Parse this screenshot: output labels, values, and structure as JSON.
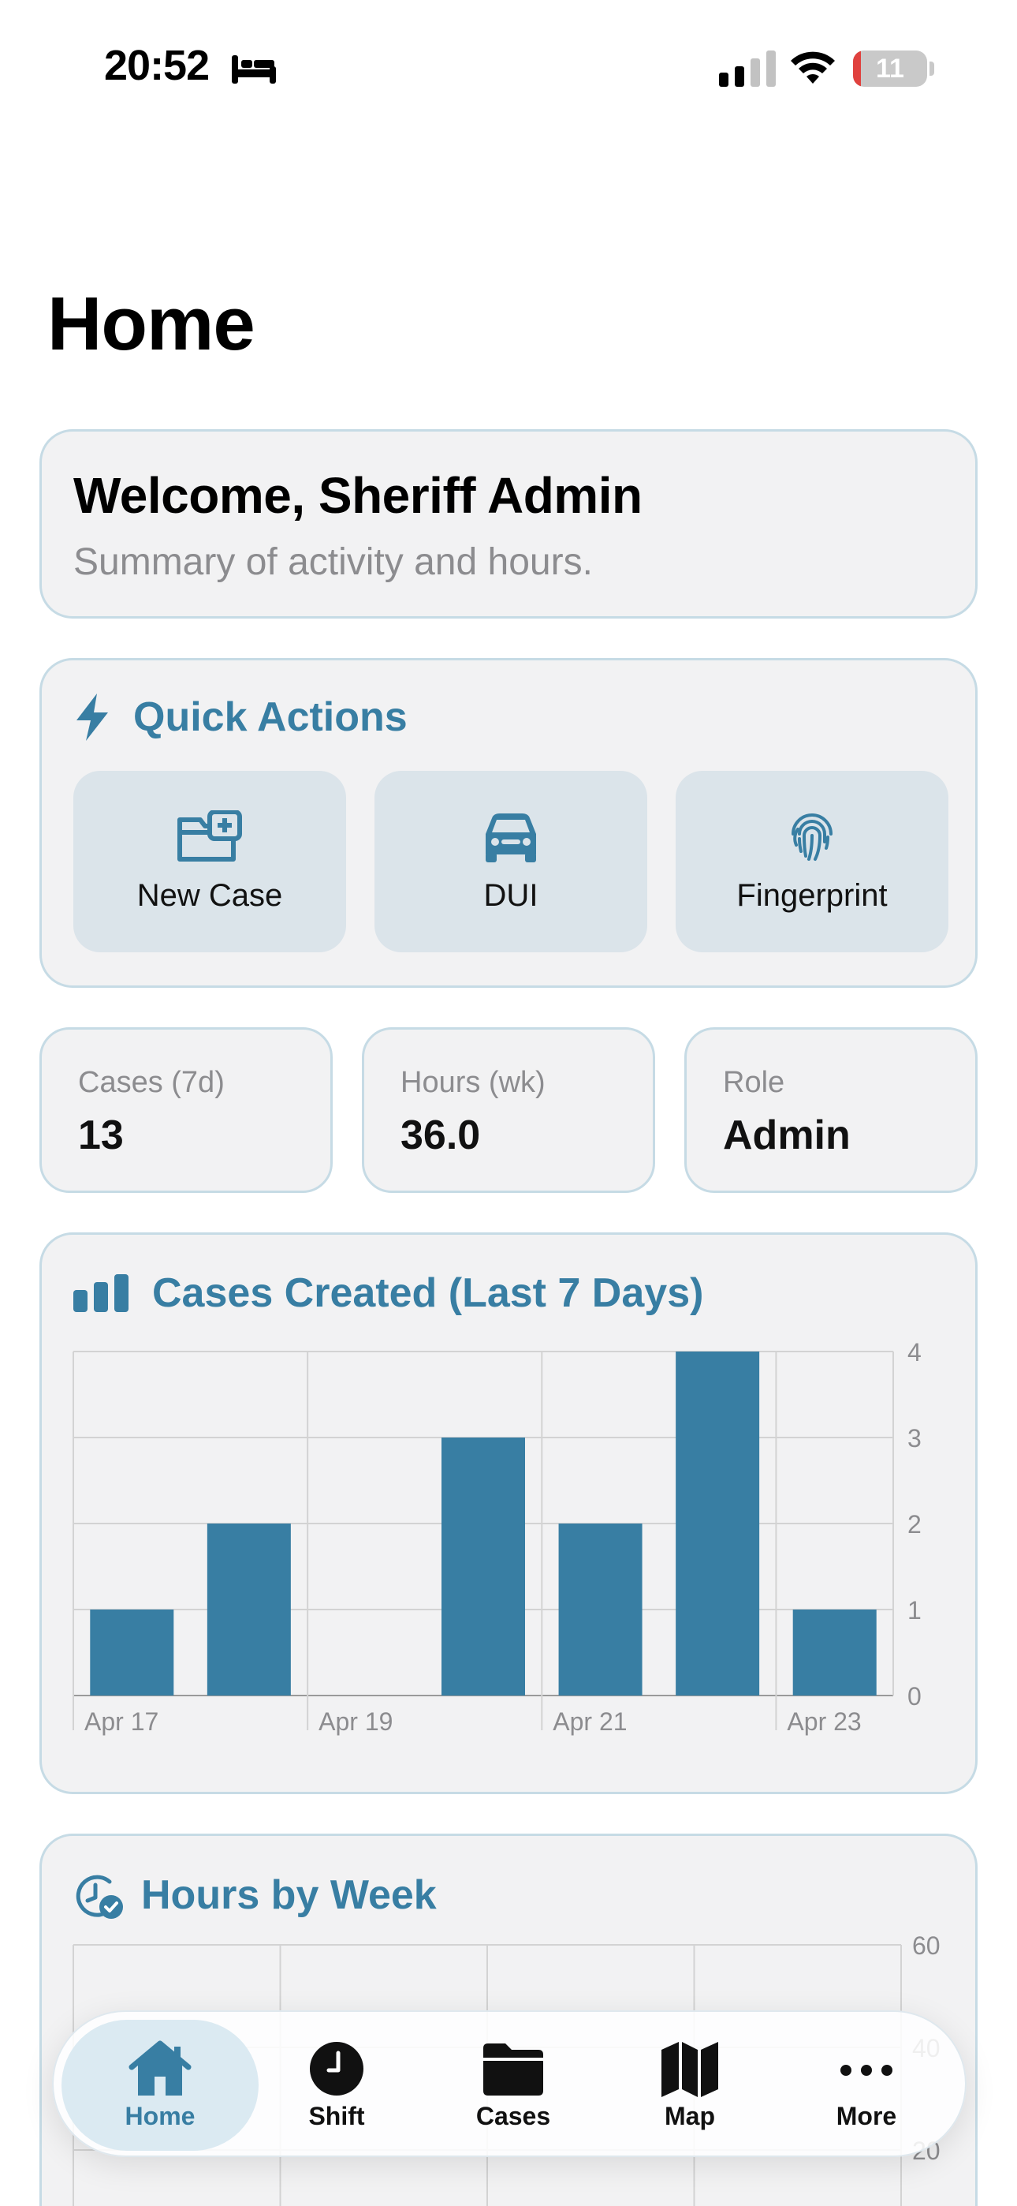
{
  "status_bar": {
    "time": "20:52",
    "battery": "11",
    "battery_level": 0.11
  },
  "page_title": "Home",
  "welcome": {
    "title": "Welcome, Sheriff Admin",
    "subtitle": "Summary of activity and hours."
  },
  "quick_actions": {
    "title": "Quick Actions",
    "icon": "bolt-icon",
    "buttons": [
      {
        "label": "New Case",
        "icon": "folder-plus-icon"
      },
      {
        "label": "DUI",
        "icon": "car-icon"
      },
      {
        "label": "Fingerprint",
        "icon": "fingerprint-icon"
      }
    ]
  },
  "stats": [
    {
      "label": "Cases (7d)",
      "value": "13"
    },
    {
      "label": "Hours (wk)",
      "value": "36.0"
    },
    {
      "label": "Role",
      "value": "Admin"
    }
  ],
  "cases_chart": {
    "title": "Cases Created (Last 7 Days)",
    "icon": "bar-chart-icon"
  },
  "hours_chart": {
    "title": "Hours by Week",
    "icon": "clock-check-icon"
  },
  "chart_data": [
    {
      "type": "bar",
      "title": "Cases Created (Last 7 Days)",
      "categories": [
        "Apr 17",
        "Apr 18",
        "Apr 19",
        "Apr 20",
        "Apr 21",
        "Apr 22",
        "Apr 23"
      ],
      "x_tick_labels": [
        "Apr 17",
        "Apr 19",
        "Apr 21",
        "Apr 23"
      ],
      "values": [
        1,
        2,
        0,
        3,
        2,
        4,
        1
      ],
      "ylim": [
        0,
        4
      ],
      "y_ticks": [
        0,
        1,
        2,
        3,
        4
      ],
      "y_axis_side": "right",
      "grid": true,
      "color": "#387ea3"
    },
    {
      "type": "bar",
      "title": "Hours by Week",
      "ylim": [
        0,
        60
      ],
      "y_ticks": [
        20,
        40,
        60
      ],
      "y_axis_side": "right",
      "grid": true,
      "color": "#87c6e6"
    }
  ],
  "tabs": [
    {
      "label": "Home",
      "icon": "house-icon",
      "active": true
    },
    {
      "label": "Shift",
      "icon": "clock-icon",
      "active": false
    },
    {
      "label": "Cases",
      "icon": "folder-icon",
      "active": false
    },
    {
      "label": "Map",
      "icon": "map-icon",
      "active": false
    },
    {
      "label": "More",
      "icon": "ellipsis-icon",
      "active": false
    }
  ]
}
